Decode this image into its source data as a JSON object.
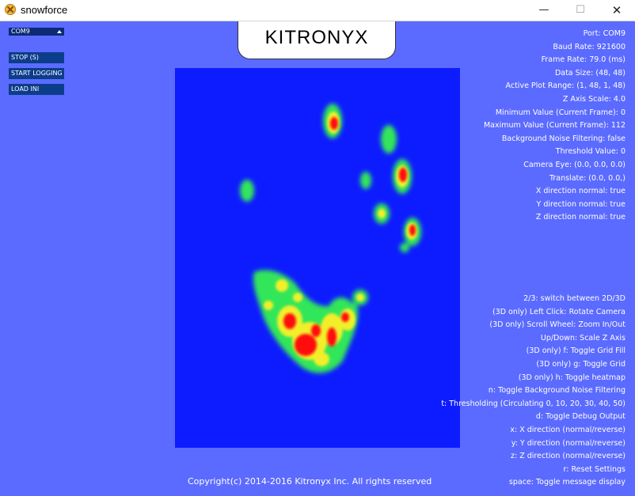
{
  "window": {
    "title": "snowforce",
    "minimize_glyph": "—",
    "maximize_glyph": "☐",
    "close_glyph": "✕"
  },
  "logo": "KITRONYX",
  "controls": {
    "port_select": "COM9",
    "buttons": [
      "STOP (S)",
      "START LOGGING",
      "LOAD INI"
    ]
  },
  "info_lines": [
    "Port: COM9",
    "Baud Rate: 921600",
    "Frame Rate: 79.0 (ms)",
    "Data Size: (48, 48)",
    "Active Plot Range: (1, 48, 1, 48)",
    "Z Axis Scale: 4.0",
    "Minimum Value (Current Frame): 0",
    "Maximum Value (Current Frame): 112",
    "Background Noise Filtering: false",
    "Threshold Value: 0",
    "Camera Eye: (0.0, 0.0, 0.0)",
    "Translate: (0.0, 0.0,)",
    "X direction normal: true",
    "Y direction normal: true",
    "Z direction normal: true"
  ],
  "help_lines": [
    "2/3: switch between 2D/3D",
    "(3D only) Left Click: Rotate Camera",
    "(3D only) Scroll Wheel: Zoom In/Out",
    "Up/Down: Scale Z Axis",
    "(3D only) f: Toggle Grid Fill",
    "(3D only) g: Toggle Grid",
    "(3D only) h: Toggle heatmap",
    "n: Toggle Background Noise Filtering",
    "t: Thresholding (Circulating 0, 10, 20, 30, 40, 50)",
    "d: Toggle Debug Output",
    "x: X direction (normal/reverse)",
    "y: Y direction (normal/reverse)",
    "z: Z direction (normal/reverse)",
    "r: Reset Settings",
    "space: Toggle message display"
  ],
  "copyright": "Copyright(c) 2014-2016 Kitronyx Inc. All rights reserved",
  "colors": {
    "background": "#5b6bff",
    "heatmap_base": "#0d1cff",
    "heat_green": "#32e65a",
    "heat_yellow": "#f2ef2a",
    "heat_red": "#ff1010"
  }
}
